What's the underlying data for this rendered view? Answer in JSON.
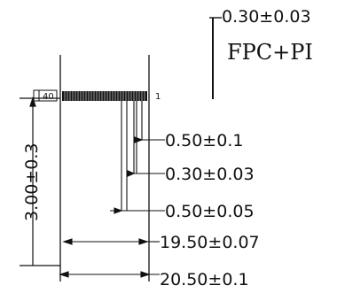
{
  "drawing": {
    "top_dimension": "0.30±0.03",
    "material": "FPC+PI",
    "height_dimension": "3.00±0.3",
    "left_pin_mark": "40",
    "right_pin_mark": "1",
    "dimensions": [
      "0.50±0.1",
      "0.30±0.03",
      "0.50±0.05",
      "19.50±0.07",
      "20.50±0.1"
    ]
  }
}
